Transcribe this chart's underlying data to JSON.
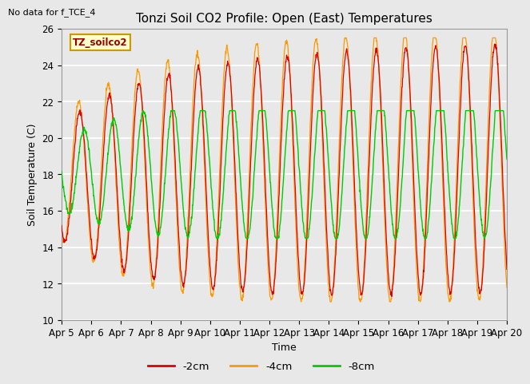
{
  "title": "Tonzi Soil CO2 Profile: Open (East) Temperatures",
  "no_data_label": "No data for f_TCE_4",
  "site_label": "TZ_soilco2",
  "xlabel": "Time",
  "ylabel": "Soil Temperature (C)",
  "ylim": [
    10,
    26
  ],
  "yticks": [
    10,
    12,
    14,
    16,
    18,
    20,
    22,
    24,
    26
  ],
  "xtick_labels": [
    "Apr 5",
    "Apr 6",
    "Apr 7",
    "Apr 8",
    "Apr 9",
    "Apr 10",
    "Apr 11",
    "Apr 12",
    "Apr 13",
    "Apr 14",
    "Apr 15",
    "Apr 16",
    "Apr 17",
    "Apr 18",
    "Apr 19",
    "Apr 20"
  ],
  "line_colors": {
    "2cm": "#dd0000",
    "4cm": "#ff9900",
    "8cm": "#00cc00"
  },
  "legend_labels": [
    "-2cm",
    "-4cm",
    "-8cm"
  ],
  "background_color": "#e8e8e8",
  "grid_color": "#ffffff",
  "title_fontsize": 11,
  "label_fontsize": 9,
  "tick_fontsize": 8.5
}
